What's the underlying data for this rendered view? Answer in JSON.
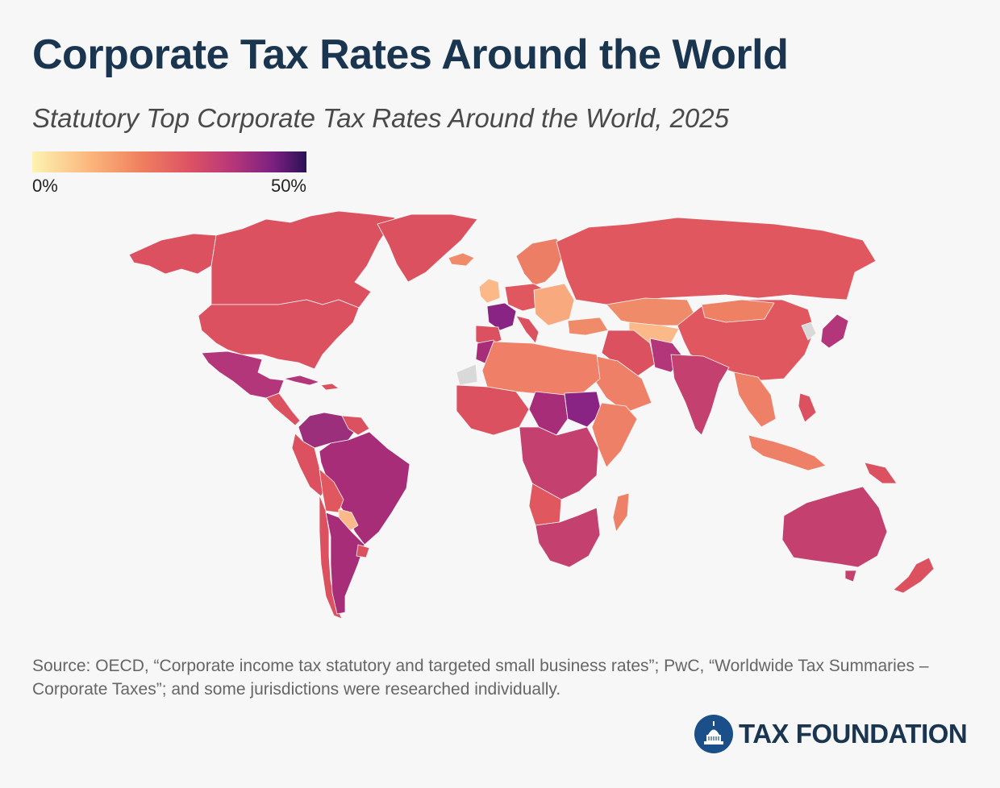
{
  "header": {
    "title": "Corporate Tax Rates Around the World",
    "subtitle": "Statutory Top Corporate Tax Rates Around the World, 2025"
  },
  "legend": {
    "min_label": "0%",
    "max_label": "50%",
    "color_scale": [
      "#fdf3b2",
      "#fbb37a",
      "#ef7f5f",
      "#dc5165",
      "#b3357a",
      "#7a2080",
      "#2b1156"
    ]
  },
  "map": {
    "no_data_color": "#d9d9d9",
    "ocean_color": "#f7f7f7",
    "border_color": "#f7f7f7"
  },
  "footer": {
    "source": "Source: OECD, “Corporate income tax statutory and targeted small business rates”; PwC, “Worldwide Tax Summaries – Corporate Taxes”; and some jurisdictions were researched individually.",
    "brand": "TAX FOUNDATION",
    "brand_icon": "capitol-dome-icon"
  }
}
